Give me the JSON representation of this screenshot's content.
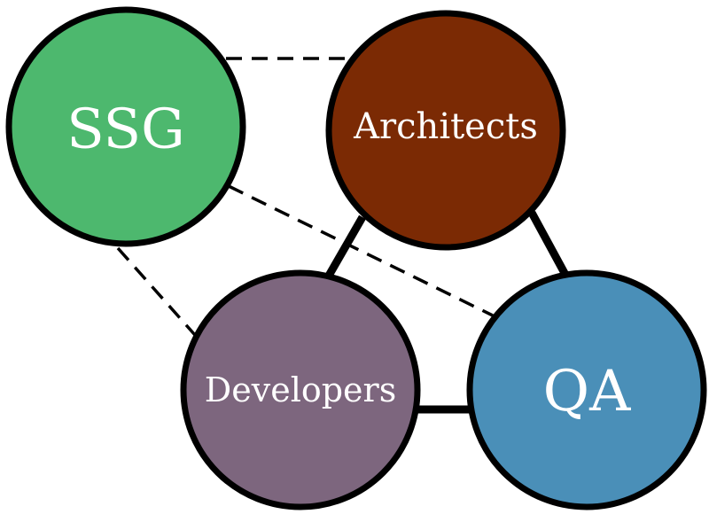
{
  "diagram": {
    "nodes": {
      "ssg": {
        "label": "SSG",
        "color": "#4db86e"
      },
      "architects": {
        "label": "Architects",
        "color": "#7b2a04"
      },
      "developers": {
        "label": "Developers",
        "color": "#7d667e"
      },
      "qa": {
        "label": "QA",
        "color": "#4a8fb8"
      }
    },
    "edges": [
      {
        "from": "ssg",
        "to": "architects",
        "style": "dashed"
      },
      {
        "from": "ssg",
        "to": "developers",
        "style": "dashed"
      },
      {
        "from": "ssg",
        "to": "qa",
        "style": "dashed"
      },
      {
        "from": "architects",
        "to": "developers",
        "style": "solid"
      },
      {
        "from": "architects",
        "to": "qa",
        "style": "solid"
      },
      {
        "from": "developers",
        "to": "qa",
        "style": "solid"
      }
    ]
  }
}
